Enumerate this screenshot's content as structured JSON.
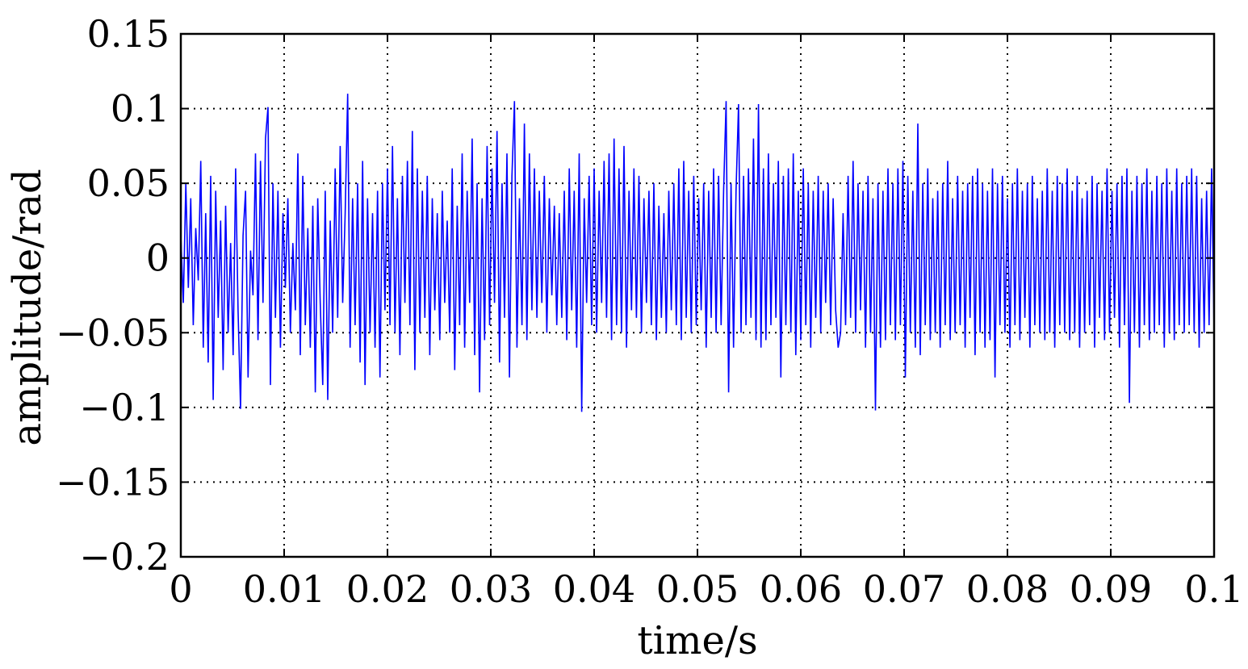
{
  "chart_data": {
    "type": "line",
    "title": "",
    "xlabel": "time/s",
    "ylabel": "amplitude/rad",
    "xlim": [
      0,
      0.1
    ],
    "ylim": [
      -0.2,
      0.15
    ],
    "grid": true,
    "grid_style": "dotted",
    "legend": "none",
    "x_ticks": [
      0,
      0.01,
      0.02,
      0.03,
      0.04,
      0.05,
      0.06,
      0.07,
      0.08,
      0.09,
      0.1
    ],
    "x_tick_labels": [
      "0",
      "0.01",
      "0.02",
      "0.03",
      "0.04",
      "0.05",
      "0.06",
      "0.07",
      "0.08",
      "0.09",
      "0.1"
    ],
    "y_ticks": [
      0.15,
      0.1,
      0.05,
      0,
      -0.05,
      -0.1,
      -0.15,
      -0.2
    ],
    "y_tick_labels": [
      "0.15",
      "0.1",
      "0.05",
      "0",
      "−0.05",
      "−0.1",
      "−0.15",
      "−0.2"
    ],
    "series": [
      {
        "color": "#0000ff",
        "x_start": 0,
        "x_step": 0.00025,
        "values": [
          0.015,
          -0.03,
          0.05,
          -0.02,
          0.04,
          -0.045,
          0.02,
          -0.015,
          0.065,
          -0.06,
          0.03,
          -0.07,
          0.055,
          -0.095,
          0.045,
          -0.04,
          0.025,
          -0.075,
          0.035,
          -0.05,
          0.01,
          -0.065,
          0.06,
          -0.035,
          -0.101,
          0.015,
          0.045,
          -0.08,
          0.005,
          -0.025,
          0.07,
          -0.055,
          0.065,
          -0.03,
          0.08,
          0.101,
          -0.085,
          0.05,
          -0.04,
          0.045,
          -0.06,
          0.03,
          -0.02,
          0.04,
          -0.05,
          0.01,
          -0.035,
          0.07,
          -0.065,
          0.055,
          -0.045,
          0.02,
          -0.06,
          0.035,
          -0.09,
          0.04,
          -0.03,
          -0.085,
          0.045,
          -0.095,
          0.025,
          -0.05,
          0.06,
          -0.04,
          0.075,
          -0.03,
          0.03,
          0.11,
          -0.06,
          0.04,
          -0.045,
          0.05,
          -0.07,
          0.065,
          -0.085,
          0.04,
          -0.05,
          0.03,
          -0.06,
          0.045,
          -0.08,
          0.05,
          -0.035,
          0.06,
          -0.045,
          0.075,
          -0.05,
          0.04,
          -0.065,
          0.055,
          -0.03,
          0.065,
          -0.045,
          0.085,
          -0.075,
          0.06,
          -0.05,
          0.045,
          -0.04,
          0.055,
          -0.065,
          0.04,
          -0.035,
          0.03,
          -0.055,
          0.045,
          -0.03,
          0.025,
          -0.05,
          0.06,
          -0.075,
          0.035,
          -0.045,
          0.07,
          -0.06,
          0.045,
          -0.03,
          0.08,
          -0.065,
          0.05,
          -0.09,
          0.04,
          -0.055,
          0.075,
          -0.045,
          0.06,
          -0.03,
          0.085,
          -0.07,
          0.05,
          -0.04,
          0.07,
          -0.08,
          0.055,
          0.105,
          -0.06,
          0.04,
          -0.045,
          0.09,
          -0.055,
          0.07,
          -0.035,
          0.06,
          -0.04,
          0.045,
          -0.03,
          0.055,
          -0.05,
          0.04,
          -0.025,
          0.035,
          -0.045,
          0.03,
          -0.04,
          0.045,
          -0.055,
          0.06,
          -0.035,
          0.045,
          -0.06,
          0.07,
          -0.103,
          0.04,
          -0.03,
          0.055,
          -0.045,
          0.06,
          -0.05,
          0.045,
          -0.03,
          0.065,
          -0.04,
          0.07,
          -0.055,
          0.08,
          -0.045,
          0.06,
          -0.05,
          0.075,
          -0.06,
          0.045,
          -0.035,
          0.06,
          -0.04,
          0.055,
          -0.05,
          0.04,
          -0.03,
          0.045,
          -0.045,
          0.05,
          -0.055,
          0.035,
          -0.04,
          0.03,
          -0.05,
          0.045,
          -0.035,
          0.05,
          -0.045,
          0.06,
          -0.055,
          0.065,
          -0.04,
          0.045,
          -0.05,
          0.055,
          -0.045,
          0.04,
          -0.035,
          0.05,
          -0.06,
          0.045,
          -0.04,
          0.06,
          -0.05,
          0.055,
          -0.045,
          0.045,
          0.105,
          -0.09,
          0.05,
          -0.06,
          0.045,
          0.103,
          -0.05,
          0.055,
          -0.045,
          0.06,
          -0.04,
          0.08,
          -0.055,
          0.103,
          -0.06,
          0.06,
          -0.055,
          0.07,
          -0.045,
          0.05,
          -0.04,
          0.065,
          -0.08,
          0.055,
          -0.045,
          0.06,
          -0.05,
          0.07,
          -0.065,
          0.045,
          -0.055,
          0.06,
          -0.045,
          0.05,
          -0.06,
          0.045,
          -0.04,
          0.055,
          -0.05,
          0.045,
          -0.03,
          0.05,
          -0.045,
          0.04,
          -0.035,
          -0.06,
          -0.05,
          0.03,
          -0.045,
          0.055,
          -0.04,
          0.065,
          -0.05,
          0.05,
          -0.035,
          0.045,
          -0.06,
          0.055,
          -0.05,
          0.04,
          -0.102,
          0.05,
          -0.06,
          0.045,
          -0.055,
          0.06,
          -0.045,
          0.05,
          -0.055,
          0.06,
          -0.045,
          0.065,
          -0.08,
          0.055,
          -0.05,
          0.045,
          -0.06,
          0.09,
          -0.065,
          0.05,
          -0.045,
          0.06,
          -0.055,
          0.04,
          -0.05,
          0.045,
          -0.06,
          0.05,
          -0.045,
          0.065,
          -0.055,
          0.04,
          -0.05,
          0.055,
          -0.045,
          0.045,
          -0.06,
          0.05,
          -0.04,
          0.055,
          -0.065,
          0.06,
          -0.05,
          0.05,
          -0.06,
          0.045,
          -0.055,
          0.06,
          -0.08,
          0.05,
          -0.045,
          0.055,
          -0.05,
          0.04,
          -0.06,
          0.05,
          -0.045,
          0.06,
          -0.055,
          0.045,
          -0.04,
          0.05,
          -0.06,
          0.055,
          -0.045,
          0.04,
          -0.05,
          0.045,
          -0.055,
          0.06,
          -0.05,
          0.045,
          -0.06,
          0.055,
          -0.045,
          0.05,
          -0.05,
          0.06,
          -0.055,
          0.045,
          -0.05,
          0.055,
          -0.06,
          0.04,
          -0.05,
          0.045,
          -0.045,
          0.055,
          -0.06,
          0.05,
          -0.04,
          0.045,
          -0.055,
          0.06,
          -0.05,
          0.045,
          -0.04,
          0.05,
          -0.06,
          0.055,
          -0.045,
          0.06,
          -0.097,
          0.045,
          -0.05,
          0.055,
          -0.06,
          0.05,
          -0.045,
          0.06,
          -0.055,
          0.045,
          -0.05,
          0.055,
          -0.045,
          0.05,
          -0.06,
          0.06,
          -0.05,
          0.045,
          -0.055,
          0.06,
          -0.045,
          0.05,
          -0.05,
          0.055,
          -0.045,
          0.06,
          -0.05,
          0.055,
          -0.06,
          0.04,
          -0.05,
          0.045,
          -0.045,
          0.06,
          -0.05
        ]
      }
    ]
  }
}
